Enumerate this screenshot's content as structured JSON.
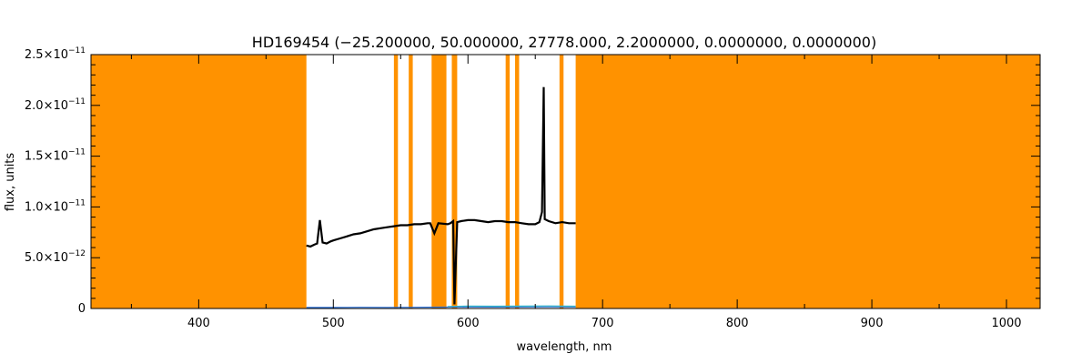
{
  "chart_data": {
    "type": "line",
    "title": "HD169454    (−25.200000, 50.000000, 27778.000, 2.2000000, 0.0000000, 0.0000000)",
    "xlabel": "wavelength, nm",
    "ylabel": "flux, units",
    "xlim": [
      320,
      1025
    ],
    "ylim": [
      0,
      2.5e-11
    ],
    "x_ticks": [
      400,
      500,
      600,
      700,
      800,
      900,
      1000
    ],
    "x_tick_labels": [
      "400",
      "500",
      "600",
      "700",
      "800",
      "900",
      "1000"
    ],
    "y_ticks": [
      0,
      5e-12,
      1e-11,
      1.5e-11,
      2e-11,
      2.5e-11
    ],
    "y_tick_labels": [
      {
        "mantissa": "0",
        "exp": ""
      },
      {
        "mantissa": "5.0×10",
        "exp": "−12"
      },
      {
        "mantissa": "1.0×10",
        "exp": "−11"
      },
      {
        "mantissa": "1.5×10",
        "exp": "−11"
      },
      {
        "mantissa": "2.0×10",
        "exp": "−11"
      },
      {
        "mantissa": "2.5×10",
        "exp": "−11"
      }
    ],
    "grid": false,
    "masked_ranges": [
      [
        320,
        480
      ],
      [
        545,
        548
      ],
      [
        556,
        559
      ],
      [
        573,
        584
      ],
      [
        588,
        592
      ],
      [
        628,
        631
      ],
      [
        635,
        638
      ],
      [
        668,
        671
      ],
      [
        680,
        1025
      ]
    ],
    "series": [
      {
        "color": "#000000",
        "x": [
          480,
          483,
          486,
          488,
          490,
          492,
          495,
          498,
          500,
          505,
          510,
          515,
          520,
          525,
          530,
          535,
          540,
          545,
          550,
          555,
          560,
          565,
          570,
          572,
          575,
          578,
          585,
          587,
          589,
          590,
          592,
          595,
          600,
          605,
          610,
          615,
          620,
          625,
          630,
          635,
          640,
          645,
          650,
          653,
          655,
          656.3,
          657,
          660,
          665,
          670,
          675,
          680
        ],
        "y": [
          6.2e-12,
          6.1e-12,
          6.3e-12,
          6.4e-12,
          8.7e-12,
          6.5e-12,
          6.4e-12,
          6.6e-12,
          6.7e-12,
          6.9e-12,
          7.1e-12,
          7.3e-12,
          7.4e-12,
          7.6e-12,
          7.8e-12,
          7.9e-12,
          8e-12,
          8.1e-12,
          8.2e-12,
          8.2e-12,
          8.3e-12,
          8.3e-12,
          8.4e-12,
          8.4e-12,
          7.4e-12,
          8.4e-12,
          8.3e-12,
          8.4e-12,
          8.6e-12,
          4e-13,
          8.5e-12,
          8.6e-12,
          8.7e-12,
          8.7e-12,
          8.6e-12,
          8.5e-12,
          8.6e-12,
          8.6e-12,
          8.5e-12,
          8.5e-12,
          8.4e-12,
          8.3e-12,
          8.3e-12,
          8.5e-12,
          9.5e-12,
          2.18e-11,
          8.8e-12,
          8.6e-12,
          8.4e-12,
          8.5e-12,
          8.4e-12,
          8.4e-12
        ]
      },
      {
        "color": "#2a6fd6",
        "x": [
          480,
          500,
          520,
          540,
          560,
          580,
          600,
          620,
          640,
          660,
          680
        ],
        "y": [
          1e-13,
          1e-13,
          1.2e-13,
          1.1e-13,
          1.2e-13,
          1.3e-13,
          1.5e-13,
          1.4e-13,
          1.5e-13,
          1.6e-13,
          1.5e-13
        ]
      },
      {
        "color": "#33b5c9",
        "x": [
          585,
          600,
          620,
          640,
          660,
          680
        ],
        "y": [
          2e-13,
          2.4e-13,
          2.2e-13,
          2.3e-13,
          2.5e-13,
          2.2e-13
        ]
      }
    ]
  },
  "colors": {
    "mask": "#ff9200",
    "axis": "#000000"
  }
}
